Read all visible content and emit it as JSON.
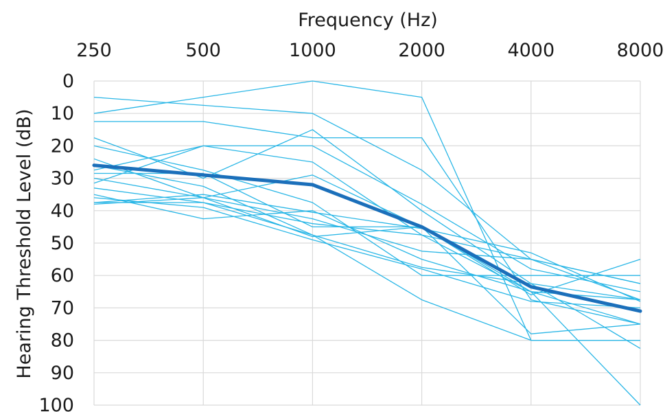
{
  "chart_data": {
    "type": "line",
    "title": "",
    "xlabel": "Frequency (Hz)",
    "ylabel": "Hearing Threshold Level (dB)",
    "x_position": "top",
    "y_inverted": true,
    "categories": [
      "250",
      "500",
      "1000",
      "2000",
      "4000",
      "8000"
    ],
    "y_ticks": [
      "0",
      "10",
      "20",
      "30",
      "40",
      "50",
      "60",
      "70",
      "80",
      "90",
      "100"
    ],
    "ylim": [
      0,
      100
    ],
    "grid": true,
    "legend": "none",
    "colors": {
      "individual": "#29b6e6",
      "mean": "#1b6fba",
      "grid": "#d9d9d9"
    },
    "series": [
      {
        "values": [
          5,
          7.5,
          10,
          27.5,
          55,
          62.5
        ]
      },
      {
        "values": [
          10,
          5,
          0,
          5,
          80,
          80
        ]
      },
      {
        "values": [
          12.5,
          12.5,
          17.5,
          17.5,
          67.5,
          75
        ]
      },
      {
        "values": [
          17.5,
          30,
          15,
          40,
          62.5,
          82.5
        ]
      },
      {
        "values": [
          20,
          27.5,
          37.5,
          60,
          60,
          60
        ]
      },
      {
        "values": [
          24,
          36,
          42.5,
          52.5,
          55,
          62.5
        ]
      },
      {
        "values": [
          26,
          32.5,
          47.5,
          57.5,
          62.5,
          67.5
        ]
      },
      {
        "values": [
          27.5,
          20,
          25,
          47.5,
          65,
          75
        ]
      },
      {
        "values": [
          28.5,
          28.5,
          45,
          45,
          65,
          67.5
        ]
      },
      {
        "values": [
          30,
          36,
          29,
          45,
          78,
          75
        ]
      },
      {
        "values": [
          31.5,
          20,
          20,
          38,
          58,
          65
        ]
      },
      {
        "values": [
          33,
          37.5,
          44,
          47.5,
          55,
          67.5
        ]
      },
      {
        "values": [
          35,
          42.5,
          40,
          55,
          65,
          100
        ]
      },
      {
        "values": [
          37.5,
          37.5,
          47.5,
          67.5,
          80,
          80
        ]
      },
      {
        "values": [
          38,
          36,
          48,
          45,
          66,
          55
        ]
      },
      {
        "values": [
          36,
          39,
          49,
          58,
          68,
          70
        ]
      },
      {
        "values": [
          37.5,
          35,
          40.5,
          45.5,
          53,
          68
        ]
      }
    ],
    "mean_series": {
      "values": [
        26,
        29,
        32,
        45,
        63.5,
        71
      ]
    }
  }
}
